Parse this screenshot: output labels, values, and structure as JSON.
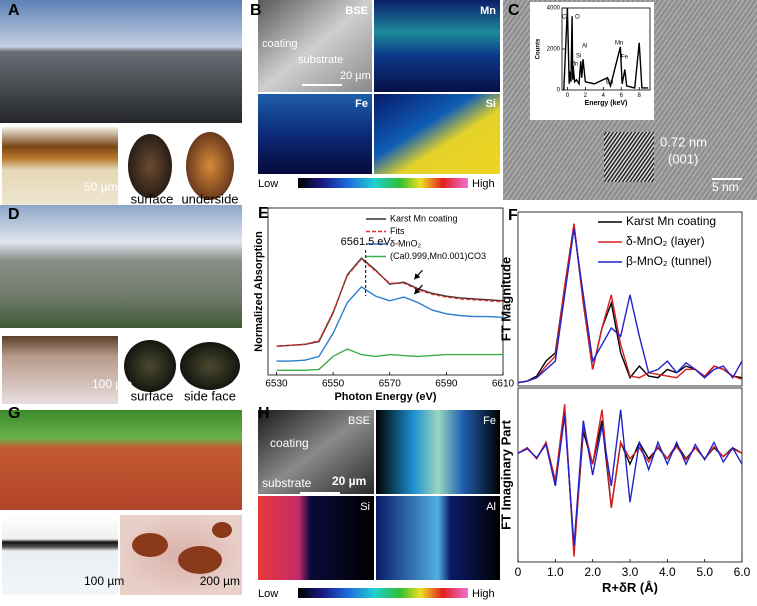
{
  "panel_labels": [
    "A",
    "B",
    "C",
    "D",
    "E",
    "F",
    "G",
    "H"
  ],
  "panel_a": {
    "scale_bar": "50 µm",
    "labels": [
      "surface",
      "underside"
    ]
  },
  "panel_b": {
    "bse": "BSE",
    "mn": "Mn",
    "fe": "Fe",
    "si": "Si",
    "coating": "coating",
    "substrate": "substrate",
    "scale_bar": "20 µm",
    "low": "Low",
    "high": "High"
  },
  "panel_c": {
    "d_spacing": "0.72 nm",
    "plane": "(001)",
    "scale_bar": "5 nm"
  },
  "panel_d": {
    "scale_bar": "100 µm",
    "labels": [
      "surface",
      "side face"
    ]
  },
  "panel_g": {
    "scale_bars": [
      "100 µm",
      "200 µm"
    ]
  },
  "panel_h": {
    "bse": "BSE",
    "fe": "Fe",
    "si": "Si",
    "al": "Al",
    "coating": "coating",
    "substrate": "substrate",
    "scale_bar": "20 µm",
    "low": "Low",
    "high": "High"
  },
  "chart_data": [
    {
      "type": "line",
      "xlabel": "Energy (keV)",
      "ylabel": "Counts",
      "x": [
        -0.4,
        0,
        0.2,
        0.28,
        0.4,
        0.52,
        0.6,
        0.64,
        0.8,
        1.0,
        1.3,
        1.49,
        1.6,
        1.74,
        2.0,
        3.0,
        4.47,
        4.8,
        5.9,
        6.1,
        6.4,
        6.6,
        7.5,
        8.0,
        8.3,
        9.0
      ],
      "series": [
        {
          "color": "#000000",
          "values": [
            0,
            4000,
            300,
            900,
            400,
            3600,
            500,
            1200,
            400,
            500,
            300,
            1400,
            600,
            1500,
            400,
            300,
            600,
            200,
            2100,
            300,
            1000,
            200,
            100,
            2300,
            100,
            100
          ]
        }
      ],
      "xlim": [
        -0.6,
        9.2
      ],
      "ylim": [
        0,
        4000
      ],
      "xticks": [
        0,
        2,
        4,
        6,
        8
      ],
      "yticks": [
        0,
        2000,
        4000
      ],
      "peak_labels": [
        "C",
        "O",
        "Mn",
        "Si",
        "Al",
        "Ba",
        "Mn",
        "Fe"
      ]
    },
    {
      "type": "line",
      "xlabel": "Photon Energy (eV)",
      "ylabel": "Normalized Absorption",
      "x": [
        6530,
        6535,
        6540,
        6545,
        6550,
        6555,
        6560,
        6565,
        6570,
        6575,
        6580,
        6585,
        6590,
        6595,
        6600,
        6605,
        6610
      ],
      "series": [
        {
          "name": "Karst Mn coating",
          "color": "#333333",
          "values": [
            0.31,
            0.32,
            0.33,
            0.36,
            0.67,
            1.08,
            1.26,
            1.13,
            0.98,
            1.0,
            0.93,
            0.88,
            0.85,
            0.83,
            0.82,
            0.81,
            0.8
          ]
        },
        {
          "name": "Fits",
          "color": "#e0302a",
          "dash": true,
          "values": [
            0.31,
            0.32,
            0.33,
            0.37,
            0.68,
            1.07,
            1.25,
            1.12,
            0.99,
            0.99,
            0.92,
            0.87,
            0.84,
            0.82,
            0.81,
            0.8,
            0.79
          ]
        },
        {
          "name": "δ-MnO₂",
          "color": "#2a7fd0",
          "values": [
            0.15,
            0.15,
            0.16,
            0.2,
            0.45,
            0.78,
            0.95,
            0.85,
            0.8,
            0.84,
            0.78,
            0.7,
            0.66,
            0.64,
            0.63,
            0.63,
            0.62
          ]
        },
        {
          "name": "(Ca0.999,Mn0.001)CO3",
          "color": "#3cae4a",
          "values": [
            0.05,
            0.05,
            0.05,
            0.06,
            0.2,
            0.28,
            0.22,
            0.2,
            0.22,
            0.21,
            0.2,
            0.21,
            0.22,
            0.22,
            0.22,
            0.22,
            0.22
          ]
        }
      ],
      "xlim": [
        6527,
        6610
      ],
      "ylim": [
        0,
        1.8
      ],
      "xticks": [
        6530,
        6550,
        6570,
        6590,
        6610
      ],
      "annotations": [
        {
          "text": "6561.5 eV",
          "x": 6561.5
        }
      ]
    },
    {
      "type": "line",
      "ylabel": "FT Magnitude",
      "x": [
        0,
        0.25,
        0.5,
        0.75,
        1.0,
        1.25,
        1.5,
        1.75,
        2.0,
        2.25,
        2.5,
        2.75,
        3.0,
        3.25,
        3.5,
        3.75,
        4.0,
        4.25,
        4.5,
        4.75,
        5.0,
        5.25,
        5.5,
        5.75,
        6.0
      ],
      "series": [
        {
          "name": "Karst Mn coating",
          "color": "#000000",
          "values": [
            0.02,
            0.03,
            0.06,
            0.15,
            0.2,
            0.6,
            0.97,
            0.5,
            0.1,
            0.35,
            0.5,
            0.2,
            0.05,
            0.12,
            0.06,
            0.05,
            0.1,
            0.08,
            0.12,
            0.1,
            0.05,
            0.12,
            0.1,
            0.06,
            0.05
          ]
        },
        {
          "name": "δ-MnO₂ (layer)",
          "color": "#d62020",
          "values": [
            0.02,
            0.03,
            0.05,
            0.12,
            0.18,
            0.6,
            0.98,
            0.5,
            0.1,
            0.35,
            0.55,
            0.25,
            0.06,
            0.05,
            0.08,
            0.07,
            0.06,
            0.05,
            0.1,
            0.1,
            0.06,
            0.12,
            0.1,
            0.06,
            0.04
          ]
        },
        {
          "name": "β-MnO₂ (tunnel)",
          "color": "#2222cc",
          "values": [
            0.02,
            0.03,
            0.05,
            0.1,
            0.15,
            0.55,
            0.95,
            0.55,
            0.15,
            0.25,
            0.35,
            0.3,
            0.55,
            0.3,
            0.08,
            0.1,
            0.15,
            0.08,
            0.14,
            0.1,
            0.05,
            0.1,
            0.12,
            0.05,
            0.15
          ]
        }
      ],
      "xlim": [
        0,
        6
      ],
      "ylim": [
        0,
        1.05
      ]
    },
    {
      "type": "line",
      "ylabel": "FT Imaginary Part",
      "xlabel": "R+δR (Å)",
      "x": [
        0,
        0.25,
        0.5,
        0.75,
        1.0,
        1.25,
        1.5,
        1.75,
        2.0,
        2.25,
        2.5,
        2.75,
        3.0,
        3.25,
        3.5,
        3.75,
        4.0,
        4.25,
        4.5,
        4.75,
        5.0,
        5.25,
        5.5,
        5.75,
        6.0
      ],
      "series": [
        {
          "color": "#000000",
          "values": [
            0,
            0.05,
            -0.05,
            0.1,
            -0.3,
            0.4,
            -0.9,
            0.2,
            -0.1,
            0.3,
            -0.5,
            0.1,
            -0.1,
            0.1,
            -0.05,
            0.05,
            -0.05,
            0.08,
            -0.05,
            0.05,
            -0.05,
            0.05,
            -0.03,
            0.05,
            0
          ]
        },
        {
          "color": "#d62020",
          "values": [
            0,
            0.05,
            -0.05,
            0.1,
            -0.25,
            0.45,
            -0.95,
            0.25,
            -0.1,
            0.4,
            -0.5,
            0.1,
            -0.05,
            0.05,
            -0.08,
            0.06,
            -0.05,
            0.06,
            -0.06,
            0.05,
            -0.05,
            0.06,
            -0.03,
            0.04,
            0
          ]
        },
        {
          "color": "#2222cc",
          "values": [
            0,
            0.04,
            -0.04,
            0.08,
            -0.3,
            0.35,
            -0.85,
            0.3,
            -0.2,
            0.25,
            -0.3,
            0.4,
            -0.45,
            0.1,
            -0.15,
            0.1,
            -0.1,
            0.1,
            -0.1,
            0.08,
            -0.06,
            0.1,
            -0.08,
            0.05,
            -0.1
          ]
        }
      ],
      "xlim": [
        0,
        6
      ],
      "ylim": [
        -1,
        0.6
      ],
      "xticks": [
        0,
        {
          "value": 1,
          "label": "1.0"
        },
        {
          "value": 2,
          "label": "2.0"
        },
        {
          "value": 3,
          "label": "3.0"
        },
        {
          "value": 4,
          "label": "4.0"
        },
        {
          "value": 5,
          "label": "5.0"
        },
        {
          "value": 6,
          "label": "6.0"
        }
      ]
    }
  ]
}
